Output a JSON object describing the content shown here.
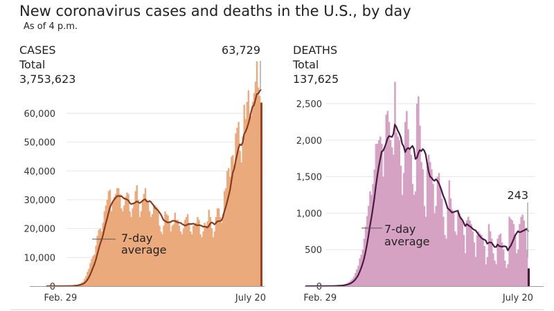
{
  "title": "New coronavirus cases and deaths in the U.S., by day",
  "subtitle": "As of 4 p.m.",
  "chart_data": [
    {
      "type": "bar",
      "panel": "CASES",
      "total_label": "Total",
      "total_value": "3,753,623",
      "latest_label": "63,729",
      "avg_label_line1": "7-day",
      "avg_label_line2": "average",
      "x_tick_labels": [
        "Feb. 29",
        "July 20"
      ],
      "y_ticks": [
        0,
        10000,
        20000,
        30000,
        40000,
        50000,
        60000
      ],
      "y_tick_labels": [
        "0",
        "10,000",
        "20,000",
        "30,000",
        "40,000",
        "50,000",
        "60,000"
      ],
      "ylim": [
        0,
        80000
      ],
      "grid": true,
      "colors": {
        "bar": "#eaaa7c",
        "latest_bar": "#9c4420",
        "line": "#8a3a1e"
      },
      "values": [
        0,
        0,
        0,
        0,
        0,
        0,
        0,
        1,
        2,
        5,
        8,
        10,
        20,
        30,
        40,
        60,
        90,
        100,
        150,
        200,
        300,
        400,
        500,
        700,
        900,
        1200,
        1600,
        2500,
        3500,
        5000,
        6000,
        8000,
        9500,
        10500,
        11000,
        14000,
        17500,
        19500,
        20000,
        19000,
        22000,
        26000,
        28000,
        30000,
        33000,
        33500,
        26000,
        29000,
        31000,
        32000,
        34000,
        34000,
        32000,
        27000,
        26000,
        28000,
        31000,
        32500,
        32000,
        26000,
        24000,
        27000,
        29000,
        33000,
        35000,
        30000,
        24000,
        26000,
        30000,
        32000,
        34000,
        30000,
        29000,
        26000,
        24000,
        25000,
        28000,
        28000,
        27500,
        26000,
        21000,
        19000,
        18000,
        21000,
        26000,
        25000,
        24500,
        22000,
        19000,
        21000,
        21500,
        25500,
        23000,
        23000,
        21000,
        19000,
        18000,
        20000,
        23000,
        24000,
        25000,
        22000,
        19000,
        18000,
        21000,
        21500,
        22000,
        24000,
        23000,
        18000,
        17000,
        19000,
        22000,
        21000,
        22500,
        26500,
        24000,
        20000,
        17000,
        19000,
        24000,
        27000,
        27000,
        24000,
        22000,
        25000,
        33000,
        34000,
        40000,
        41000,
        38000,
        45000,
        45500,
        42000,
        53000,
        55000,
        57000,
        47000,
        43000,
        52000,
        63000,
        58000,
        64000,
        68000,
        60000,
        59000,
        64000,
        67000,
        71000,
        78000,
        69000,
        66000,
        63729
      ]
    },
    {
      "type": "bar",
      "panel": "DEATHS",
      "total_label": "Total",
      "total_value": "137,625",
      "latest_label": "243",
      "avg_label_line1": "7-day",
      "avg_label_line2": "average",
      "x_tick_labels": [
        "Feb. 29",
        "July 20"
      ],
      "y_ticks": [
        0,
        500,
        1000,
        1500,
        2000,
        2500
      ],
      "y_tick_labels": [
        "0",
        "500",
        "1,000",
        "1,500",
        "2,000",
        "2,500"
      ],
      "ylim": [
        0,
        3000
      ],
      "grid": true,
      "colors": {
        "bar": "#d6a2c3",
        "latest_bar": "#4a1942",
        "line": "#4a1942"
      },
      "values": [
        0,
        0,
        0,
        0,
        0,
        0,
        0,
        0,
        0,
        0,
        1,
        0,
        1,
        1,
        2,
        1,
        2,
        2,
        2,
        4,
        5,
        7,
        8,
        10,
        12,
        15,
        20,
        25,
        35,
        50,
        60,
        80,
        100,
        130,
        180,
        230,
        280,
        380,
        430,
        500,
        650,
        820,
        960,
        1100,
        1300,
        1250,
        1400,
        1600,
        1950,
        1950,
        2000,
        2050,
        1950,
        1500,
        1900,
        2350,
        2400,
        2250,
        2000,
        1900,
        1800,
        2800,
        2100,
        2050,
        2000,
        1650,
        1250,
        1550,
        2250,
        2400,
        2150,
        1900,
        1800,
        1400,
        1250,
        1300,
        2500,
        2600,
        2200,
        1700,
        1600,
        1100,
        950,
        1650,
        1800,
        1700,
        1600,
        1400,
        1000,
        1100,
        1500,
        1550,
        1350,
        1200,
        950,
        700,
        650,
        1050,
        1450,
        1200,
        1050,
        1000,
        750,
        700,
        1050,
        1000,
        950,
        900,
        700,
        450,
        900,
        950,
        900,
        850,
        750,
        600,
        400,
        700,
        750,
        720,
        700,
        650,
        550,
        300,
        400,
        850,
        750,
        650,
        450,
        350,
        300,
        650,
        700,
        720,
        600,
        500,
        350,
        250,
        300,
        950,
        920,
        900,
        850,
        700,
        450,
        500,
        850,
        950,
        980,
        900,
        800,
        500,
        243
      ]
    }
  ]
}
